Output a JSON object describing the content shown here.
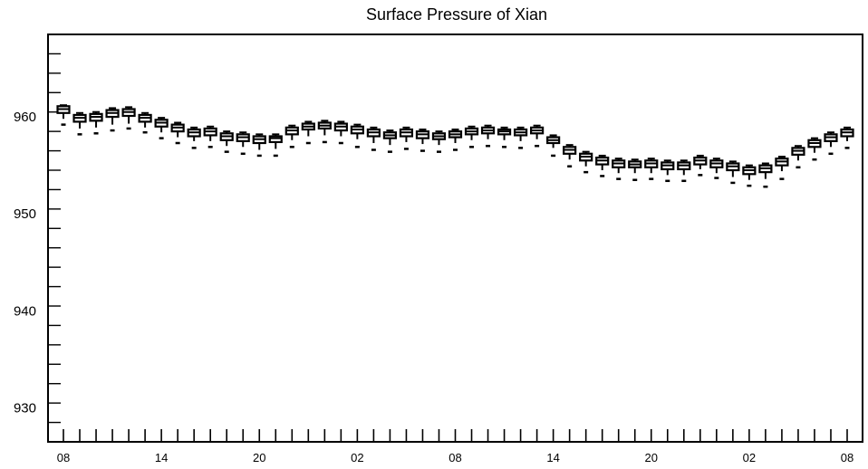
{
  "chart_data": {
    "type": "box",
    "title": "Surface Pressure of Xian",
    "xlabel": "",
    "ylabel": "",
    "ylim": [
      926.5,
      968.5
    ],
    "y_ticks": [
      930,
      940,
      950,
      960
    ],
    "y_tick_labels": [
      "930",
      "940",
      "950",
      "960"
    ],
    "x_ticks": [
      "08",
      "14",
      "20",
      "02",
      "08",
      "14",
      "20",
      "02",
      "08"
    ],
    "grid": false,
    "series": [
      {
        "boxes": [
          {
            "x": 0,
            "whisker_low": 959.8,
            "q1": 960.4,
            "median": 960.8,
            "q3": 961.1,
            "whisker_high": 961.2,
            "outlier_low": 959.2
          },
          {
            "x": 1,
            "whisker_low": 958.8,
            "q1": 959.5,
            "median": 959.9,
            "q3": 960.2,
            "whisker_high": 960.4,
            "outlier_low": 958.2
          },
          {
            "x": 2,
            "whisker_low": 958.9,
            "q1": 959.6,
            "median": 960.0,
            "q3": 960.3,
            "whisker_high": 960.5,
            "outlier_low": 958.3
          },
          {
            "x": 3,
            "whisker_low": 959.2,
            "q1": 960.0,
            "median": 960.4,
            "q3": 960.7,
            "whisker_high": 960.9,
            "outlier_low": 958.6
          },
          {
            "x": 4,
            "whisker_low": 959.3,
            "q1": 960.1,
            "median": 960.5,
            "q3": 960.8,
            "whisker_high": 961.0,
            "outlier_low": 958.8
          },
          {
            "x": 5,
            "whisker_low": 958.9,
            "q1": 959.5,
            "median": 959.9,
            "q3": 960.2,
            "whisker_high": 960.4,
            "outlier_low": 958.4
          },
          {
            "x": 6,
            "whisker_low": 958.4,
            "q1": 959.0,
            "median": 959.4,
            "q3": 959.7,
            "whisker_high": 959.9,
            "outlier_low": 957.8
          },
          {
            "x": 7,
            "whisker_low": 957.9,
            "q1": 958.5,
            "median": 958.9,
            "q3": 959.2,
            "whisker_high": 959.4,
            "outlier_low": 957.3
          },
          {
            "x": 8,
            "whisker_low": 957.5,
            "q1": 958.0,
            "median": 958.4,
            "q3": 958.7,
            "whisker_high": 958.9,
            "outlier_low": 956.8
          },
          {
            "x": 9,
            "whisker_low": 957.5,
            "q1": 958.1,
            "median": 958.5,
            "q3": 958.8,
            "whisker_high": 959.0,
            "outlier_low": 956.9
          },
          {
            "x": 10,
            "whisker_low": 957.0,
            "q1": 957.6,
            "median": 958.0,
            "q3": 958.3,
            "whisker_high": 958.5,
            "outlier_low": 956.4
          },
          {
            "x": 11,
            "whisker_low": 956.9,
            "q1": 957.5,
            "median": 957.9,
            "q3": 958.2,
            "whisker_high": 958.4,
            "outlier_low": 956.2
          },
          {
            "x": 12,
            "whisker_low": 956.6,
            "q1": 957.3,
            "median": 957.7,
            "q3": 958.0,
            "whisker_high": 958.2,
            "outlier_low": 956.0
          },
          {
            "x": 13,
            "whisker_low": 956.7,
            "q1": 957.4,
            "median": 957.8,
            "q3": 958.0,
            "whisker_high": 958.2,
            "outlier_low": 956.0
          },
          {
            "x": 14,
            "whisker_low": 957.6,
            "q1": 958.2,
            "median": 958.6,
            "q3": 958.9,
            "whisker_high": 959.1,
            "outlier_low": 956.9
          },
          {
            "x": 15,
            "whisker_low": 958.0,
            "q1": 958.7,
            "median": 959.0,
            "q3": 959.3,
            "whisker_high": 959.5,
            "outlier_low": 957.3
          },
          {
            "x": 16,
            "whisker_low": 958.1,
            "q1": 958.8,
            "median": 959.1,
            "q3": 959.4,
            "whisker_high": 959.6,
            "outlier_low": 957.4
          },
          {
            "x": 17,
            "whisker_low": 958.0,
            "q1": 958.6,
            "median": 959.0,
            "q3": 959.3,
            "whisker_high": 959.5,
            "outlier_low": 957.3
          },
          {
            "x": 18,
            "whisker_low": 957.7,
            "q1": 958.3,
            "median": 958.7,
            "q3": 959.0,
            "whisker_high": 959.2,
            "outlier_low": 956.9
          },
          {
            "x": 19,
            "whisker_low": 957.3,
            "q1": 958.0,
            "median": 958.4,
            "q3": 958.7,
            "whisker_high": 958.9,
            "outlier_low": 956.6
          },
          {
            "x": 20,
            "whisker_low": 957.1,
            "q1": 957.8,
            "median": 958.1,
            "q3": 958.4,
            "whisker_high": 958.6,
            "outlier_low": 956.4
          },
          {
            "x": 21,
            "whisker_low": 957.4,
            "q1": 958.0,
            "median": 958.4,
            "q3": 958.7,
            "whisker_high": 958.9,
            "outlier_low": 956.7
          },
          {
            "x": 22,
            "whisker_low": 957.2,
            "q1": 957.8,
            "median": 958.2,
            "q3": 958.5,
            "whisker_high": 958.7,
            "outlier_low": 956.5
          },
          {
            "x": 23,
            "whisker_low": 957.1,
            "q1": 957.7,
            "median": 958.0,
            "q3": 958.3,
            "whisker_high": 958.5,
            "outlier_low": 956.4
          },
          {
            "x": 24,
            "whisker_low": 957.3,
            "q1": 957.9,
            "median": 958.2,
            "q3": 958.5,
            "whisker_high": 958.7,
            "outlier_low": 956.6
          },
          {
            "x": 25,
            "whisker_low": 957.6,
            "q1": 958.2,
            "median": 958.5,
            "q3": 958.8,
            "whisker_high": 959.0,
            "outlier_low": 956.9
          },
          {
            "x": 26,
            "whisker_low": 957.7,
            "q1": 958.3,
            "median": 958.6,
            "q3": 958.9,
            "whisker_high": 959.1,
            "outlier_low": 957.0
          },
          {
            "x": 27,
            "whisker_low": 957.6,
            "q1": 958.2,
            "median": 958.5,
            "q3": 958.7,
            "whisker_high": 958.9,
            "outlier_low": 956.9
          },
          {
            "x": 28,
            "whisker_low": 957.5,
            "q1": 958.1,
            "median": 958.4,
            "q3": 958.7,
            "whisker_high": 958.9,
            "outlier_low": 956.8
          },
          {
            "x": 29,
            "whisker_low": 957.7,
            "q1": 958.3,
            "median": 958.6,
            "q3": 958.9,
            "whisker_high": 959.1,
            "outlier_low": 957.0
          },
          {
            "x": 30,
            "whisker_low": 956.8,
            "q1": 957.3,
            "median": 957.6,
            "q3": 957.9,
            "whisker_high": 958.1,
            "outlier_low": 956.0
          },
          {
            "x": 31,
            "whisker_low": 955.6,
            "q1": 956.2,
            "median": 956.6,
            "q3": 956.9,
            "whisker_high": 957.1,
            "outlier_low": 954.9
          },
          {
            "x": 32,
            "whisker_low": 954.9,
            "q1": 955.5,
            "median": 955.9,
            "q3": 956.2,
            "whisker_high": 956.4,
            "outlier_low": 954.3
          },
          {
            "x": 33,
            "whisker_low": 954.5,
            "q1": 955.1,
            "median": 955.5,
            "q3": 955.8,
            "whisker_high": 956.0,
            "outlier_low": 953.9
          },
          {
            "x": 34,
            "whisker_low": 954.2,
            "q1": 954.8,
            "median": 955.2,
            "q3": 955.5,
            "whisker_high": 955.7,
            "outlier_low": 953.6
          },
          {
            "x": 35,
            "whisker_low": 954.2,
            "q1": 954.8,
            "median": 955.1,
            "q3": 955.4,
            "whisker_high": 955.6,
            "outlier_low": 953.5
          },
          {
            "x": 36,
            "whisker_low": 954.2,
            "q1": 954.8,
            "median": 955.2,
            "q3": 955.5,
            "whisker_high": 955.7,
            "outlier_low": 953.6
          },
          {
            "x": 37,
            "whisker_low": 954.0,
            "q1": 954.6,
            "median": 955.0,
            "q3": 955.3,
            "whisker_high": 955.5,
            "outlier_low": 953.4
          },
          {
            "x": 38,
            "whisker_low": 954.0,
            "q1": 954.6,
            "median": 955.0,
            "q3": 955.3,
            "whisker_high": 955.5,
            "outlier_low": 953.4
          },
          {
            "x": 39,
            "whisker_low": 954.6,
            "q1": 955.1,
            "median": 955.5,
            "q3": 955.8,
            "whisker_high": 956.0,
            "outlier_low": 954.0
          },
          {
            "x": 40,
            "whisker_low": 954.2,
            "q1": 954.8,
            "median": 955.2,
            "q3": 955.5,
            "whisker_high": 955.7,
            "outlier_low": 953.7
          },
          {
            "x": 41,
            "whisker_low": 953.8,
            "q1": 954.5,
            "median": 954.9,
            "q3": 955.2,
            "whisker_high": 955.4,
            "outlier_low": 953.2
          },
          {
            "x": 42,
            "whisker_low": 953.5,
            "q1": 954.1,
            "median": 954.5,
            "q3": 954.8,
            "whisker_high": 955.0,
            "outlier_low": 952.9
          },
          {
            "x": 43,
            "whisker_low": 953.6,
            "q1": 954.3,
            "median": 954.7,
            "q3": 955.0,
            "whisker_high": 955.2,
            "outlier_low": 952.8
          },
          {
            "x": 44,
            "whisker_low": 954.4,
            "q1": 955.0,
            "median": 955.4,
            "q3": 955.7,
            "whisker_high": 955.9,
            "outlier_low": 953.6
          },
          {
            "x": 45,
            "whisker_low": 955.5,
            "q1": 956.1,
            "median": 956.5,
            "q3": 956.8,
            "whisker_high": 957.0,
            "outlier_low": 954.8
          },
          {
            "x": 46,
            "whisker_low": 956.3,
            "q1": 956.9,
            "median": 957.3,
            "q3": 957.6,
            "whisker_high": 957.8,
            "outlier_low": 955.6
          },
          {
            "x": 47,
            "whisker_low": 956.9,
            "q1": 957.5,
            "median": 957.9,
            "q3": 958.2,
            "whisker_high": 958.4,
            "outlier_low": 956.2
          },
          {
            "x": 48,
            "whisker_low": 957.5,
            "q1": 958.0,
            "median": 958.4,
            "q3": 958.7,
            "whisker_high": 958.9,
            "outlier_low": 956.8
          }
        ]
      }
    ]
  }
}
